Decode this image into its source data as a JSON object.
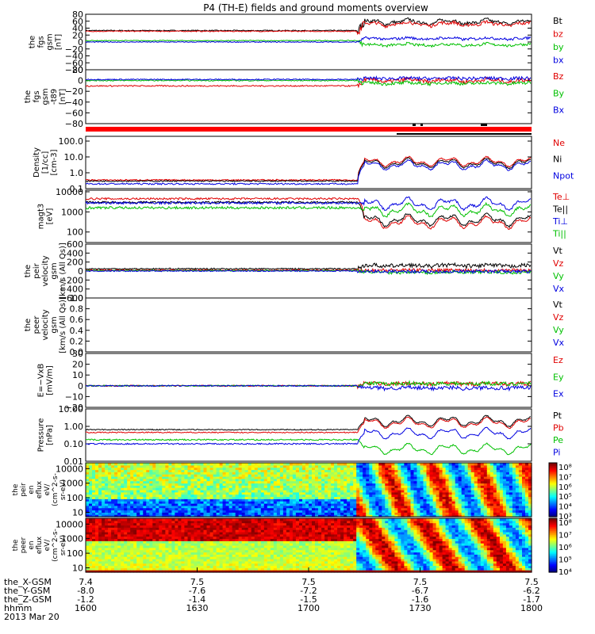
{
  "title": "P4 (TH-E) fields and ground moments overview",
  "colors": {
    "black": "#000000",
    "red": "#e00000",
    "green": "#00c000",
    "blue": "#0000e0"
  },
  "chart_data": {
    "type": "line",
    "x_axis": {
      "range": [
        1600,
        1800
      ],
      "rows": [
        {
          "label": "the_X-GSM",
          "ticks": [
            "7.4",
            "7.5",
            "7.5",
            "7.5",
            "7.5"
          ]
        },
        {
          "label": "the_Y-GSM",
          "ticks": [
            "-8.0",
            "-7.6",
            "-7.2",
            "-6.7",
            "-6.2"
          ]
        },
        {
          "label": "the_Z-GSM",
          "ticks": [
            "-1.2",
            "-1.4",
            "-1.5",
            "-1.6",
            "-1.7"
          ]
        },
        {
          "label": "hhmm",
          "ticks": [
            "1600",
            "1630",
            "1700",
            "1730",
            "1800"
          ]
        }
      ],
      "date": "2013 Mar 20"
    },
    "panels": [
      {
        "ylabel": [
          "the",
          "fgs",
          "gsm",
          "[nT]"
        ],
        "ymin": -80,
        "ymax": 80,
        "log": false,
        "ticks": [
          "80",
          "60",
          "40",
          "20",
          "0",
          "−20",
          "−40",
          "−60",
          "−80"
        ],
        "tickvals": [
          80,
          60,
          40,
          20,
          0,
          -20,
          -40,
          -60,
          -80
        ],
        "legend": [
          {
            "label": "Bt",
            "color": "#000000"
          },
          {
            "label": "bz",
            "color": "#e00000"
          },
          {
            "label": "by",
            "color": "#00c000"
          },
          {
            "label": "bx",
            "color": "#0000e0"
          }
        ],
        "series": [
          {
            "name": "Bt",
            "color": "#000000",
            "base": 33,
            "jump": [
              1722,
              58
            ],
            "noise": 1.5
          },
          {
            "name": "bz",
            "color": "#e00000",
            "base": 31,
            "jump": [
              1722,
              52
            ],
            "noise": 1.5
          },
          {
            "name": "by",
            "color": "#00c000",
            "base": 4,
            "jump": [
              1722,
              -8
            ],
            "noise": 1.2
          },
          {
            "name": "bx",
            "color": "#0000e0",
            "base": 0,
            "jump": [
              1722,
              10
            ],
            "noise": 1.2
          }
        ]
      },
      {
        "ylabel": [
          "the",
          "fgs",
          "gsm",
          "-t89",
          "[nT]"
        ],
        "ymin": -80,
        "ymax": 20,
        "log": false,
        "ticks": [
          "20",
          "0",
          "−20",
          "−40",
          "−60",
          "−80"
        ],
        "tickvals": [
          20,
          0,
          -20,
          -40,
          -60,
          -80
        ],
        "legend": [
          {
            "label": "Bz",
            "color": "#e00000"
          },
          {
            "label": "By",
            "color": "#00c000"
          },
          {
            "label": "Bx",
            "color": "#0000e0"
          }
        ],
        "series": [
          {
            "name": "Bz",
            "color": "#e00000",
            "base": -10,
            "jump": [
              1722,
              0
            ],
            "noise": 1.2
          },
          {
            "name": "By",
            "color": "#00c000",
            "base": 0,
            "jump": [
              1722,
              -5
            ],
            "noise": 1.0
          },
          {
            "name": "Bx",
            "color": "#0000e0",
            "base": 2,
            "jump": [
              1722,
              4
            ],
            "noise": 1.0
          }
        ]
      },
      {
        "ylabel": [
          "Density",
          "[1/cc]",
          "[cm-3]"
        ],
        "ymin": 0.1,
        "ymax": 200,
        "log": true,
        "ticks": [
          "100.0",
          "10.0",
          "1.0",
          "0.1"
        ],
        "tickvals": [
          100,
          10,
          1,
          0.1
        ],
        "legend": [
          {
            "label": "Ne",
            "color": "#e00000"
          },
          {
            "label": "Ni",
            "color": "#000000"
          },
          {
            "label": "Npot",
            "color": "#0000e0"
          }
        ],
        "series": [
          {
            "name": "Ne",
            "color": "#e00000",
            "base": 0.35,
            "jump": [
              1722,
              5
            ],
            "noise": 0.04
          },
          {
            "name": "Ni",
            "color": "#000000",
            "base": 0.3,
            "jump": [
              1722,
              4
            ],
            "noise": 0.04
          },
          {
            "name": "Npot",
            "color": "#0000e0",
            "base": 0.2,
            "jump": [
              1722,
              3
            ],
            "noise": 0.05
          }
        ]
      },
      {
        "ylabel": [
          "magt3",
          "[eV]"
        ],
        "ymin": 30,
        "ymax": 12000,
        "log": true,
        "ticks": [
          "10000",
          "1000",
          "100"
        ],
        "tickvals": [
          10000,
          1000,
          100
        ],
        "legend": [
          {
            "label": "Te⊥",
            "color": "#e00000"
          },
          {
            "label": "Te||",
            "color": "#000000"
          },
          {
            "label": "Ti⊥",
            "color": "#0000e0"
          },
          {
            "label": "Ti||",
            "color": "#00c000"
          }
        ],
        "series": [
          {
            "name": "Te⊥",
            "color": "#e00000",
            "base": 4500,
            "jump": [
              1722,
              300
            ],
            "noise": 0.05
          },
          {
            "name": "Te||",
            "color": "#000000",
            "base": 3000,
            "jump": [
              1722,
              400
            ],
            "noise": 0.05
          },
          {
            "name": "Ti⊥",
            "color": "#0000e0",
            "base": 2800,
            "jump": [
              1722,
              2500
            ],
            "noise": 0.06
          },
          {
            "name": "Ti||",
            "color": "#00c000",
            "base": 1600,
            "jump": [
              1722,
              1200
            ],
            "noise": 0.06
          }
        ]
      },
      {
        "ylabel": [
          "the",
          "peir",
          "velocity",
          "gsm",
          "[km/s (All Qs)]"
        ],
        "ymin": -600,
        "ymax": 600,
        "log": false,
        "ticks": [
          "600",
          "400",
          "200",
          "0",
          "−200",
          "−400",
          "−600"
        ],
        "tickvals": [
          600,
          400,
          200,
          0,
          -200,
          -400,
          -600
        ],
        "legend": [
          {
            "label": "Vt",
            "color": "#000000"
          },
          {
            "label": "Vz",
            "color": "#e00000"
          },
          {
            "label": "Vy",
            "color": "#00c000"
          },
          {
            "label": "Vx",
            "color": "#0000e0"
          }
        ],
        "series": [
          {
            "name": "Vt",
            "color": "#000000",
            "base": 50,
            "jump": [
              1722,
              120
            ],
            "noise": 15
          },
          {
            "name": "Vz",
            "color": "#e00000",
            "base": 20,
            "jump": [
              1722,
              20
            ],
            "noise": 12
          },
          {
            "name": "Vy",
            "color": "#00c000",
            "base": 10,
            "jump": [
              1722,
              -30
            ],
            "noise": 12
          },
          {
            "name": "Vx",
            "color": "#0000e0",
            "base": 0,
            "jump": [
              1722,
              -10
            ],
            "noise": 12
          }
        ]
      },
      {
        "ylabel": [
          "the",
          "peer",
          "velocity",
          "gsm",
          "[km/s (All Qs)]"
        ],
        "ymin": 0,
        "ymax": 1,
        "log": false,
        "ticks": [
          "1.0",
          "0.8",
          "0.6",
          "0.4",
          "0.2",
          "0.0"
        ],
        "tickvals": [
          1,
          0.8,
          0.6,
          0.4,
          0.2,
          0
        ],
        "legend": [
          {
            "label": "Vt",
            "color": "#000000"
          },
          {
            "label": "Vz",
            "color": "#e00000"
          },
          {
            "label": "Vy",
            "color": "#00c000"
          },
          {
            "label": "Vx",
            "color": "#0000e0"
          }
        ],
        "series": []
      },
      {
        "ylabel": [
          "E=−VxB",
          "[mV/m]"
        ],
        "ymin": -20,
        "ymax": 30,
        "log": false,
        "ticks": [
          "30",
          "20",
          "10",
          "0",
          "−10",
          "−20"
        ],
        "tickvals": [
          30,
          20,
          10,
          0,
          -10,
          -20
        ],
        "legend": [
          {
            "label": "Ez",
            "color": "#e00000"
          },
          {
            "label": "Ey",
            "color": "#00c000"
          },
          {
            "label": "Ex",
            "color": "#0000e0"
          }
        ],
        "series": [
          {
            "name": "Ez",
            "color": "#e00000",
            "base": 0,
            "jump": [
              1722,
              2
            ],
            "noise": 0.6
          },
          {
            "name": "Ey",
            "color": "#00c000",
            "base": 0,
            "jump": [
              1722,
              2
            ],
            "noise": 0.6
          },
          {
            "name": "Ex",
            "color": "#0000e0",
            "base": 0,
            "jump": [
              1722,
              -2
            ],
            "noise": 0.6
          }
        ]
      },
      {
        "ylabel": [
          "Pressure",
          "[nPa]"
        ],
        "ymin": 0.01,
        "ymax": 10,
        "log": true,
        "ticks": [
          "10.00",
          "1.00",
          "0.10",
          "0.01"
        ],
        "tickvals": [
          10,
          1,
          0.1,
          0.01
        ],
        "legend": [
          {
            "label": "Pt",
            "color": "#000000"
          },
          {
            "label": "Pb",
            "color": "#e00000"
          },
          {
            "label": "Pe",
            "color": "#00c000"
          },
          {
            "label": "Pi",
            "color": "#0000e0"
          }
        ],
        "series": [
          {
            "name": "Pt",
            "color": "#000000",
            "base": 0.65,
            "jump": [
              1722,
              2.0
            ],
            "noise": 0.03
          },
          {
            "name": "Pb",
            "color": "#e00000",
            "base": 0.45,
            "jump": [
              1722,
              1.6
            ],
            "noise": 0.03
          },
          {
            "name": "Pe",
            "color": "#00c000",
            "base": 0.17,
            "jump": [
              1722,
              0.05
            ],
            "noise": 0.04
          },
          {
            "name": "Pi",
            "color": "#0000e0",
            "base": 0.1,
            "jump": [
              1722,
              0.4
            ],
            "noise": 0.04
          }
        ]
      }
    ],
    "spectrograms": [
      {
        "ylabel": [
          "the",
          "peir",
          "en",
          "eflux",
          "eV/",
          "(cm^2-s-",
          "sr-eV)"
        ],
        "ymin": 5,
        "ymax": 25000,
        "log": true,
        "ticks": [
          "10000",
          "1000",
          "100",
          "10"
        ],
        "tickvals": [
          10000,
          1000,
          100,
          10
        ],
        "colorbar_labels": [
          "10⁸",
          "10⁷",
          "10⁶",
          "10⁵",
          "10⁴",
          "10³"
        ],
        "colorbar_range": [
          3,
          8
        ]
      },
      {
        "ylabel": [
          "the",
          "peer",
          "en",
          "eflux",
          "eV/",
          "(cm^2-s-",
          "sr-eV)"
        ],
        "ymin": 5,
        "ymax": 25000,
        "log": true,
        "ticks": [
          "10000",
          "1000",
          "100",
          "10"
        ],
        "tickvals": [
          10000,
          1000,
          100,
          10
        ],
        "colorbar_labels": [
          "10⁸",
          "10⁷",
          "10⁶",
          "10⁵",
          "10⁴"
        ],
        "colorbar_range": [
          3.5,
          8.2
        ]
      }
    ]
  }
}
